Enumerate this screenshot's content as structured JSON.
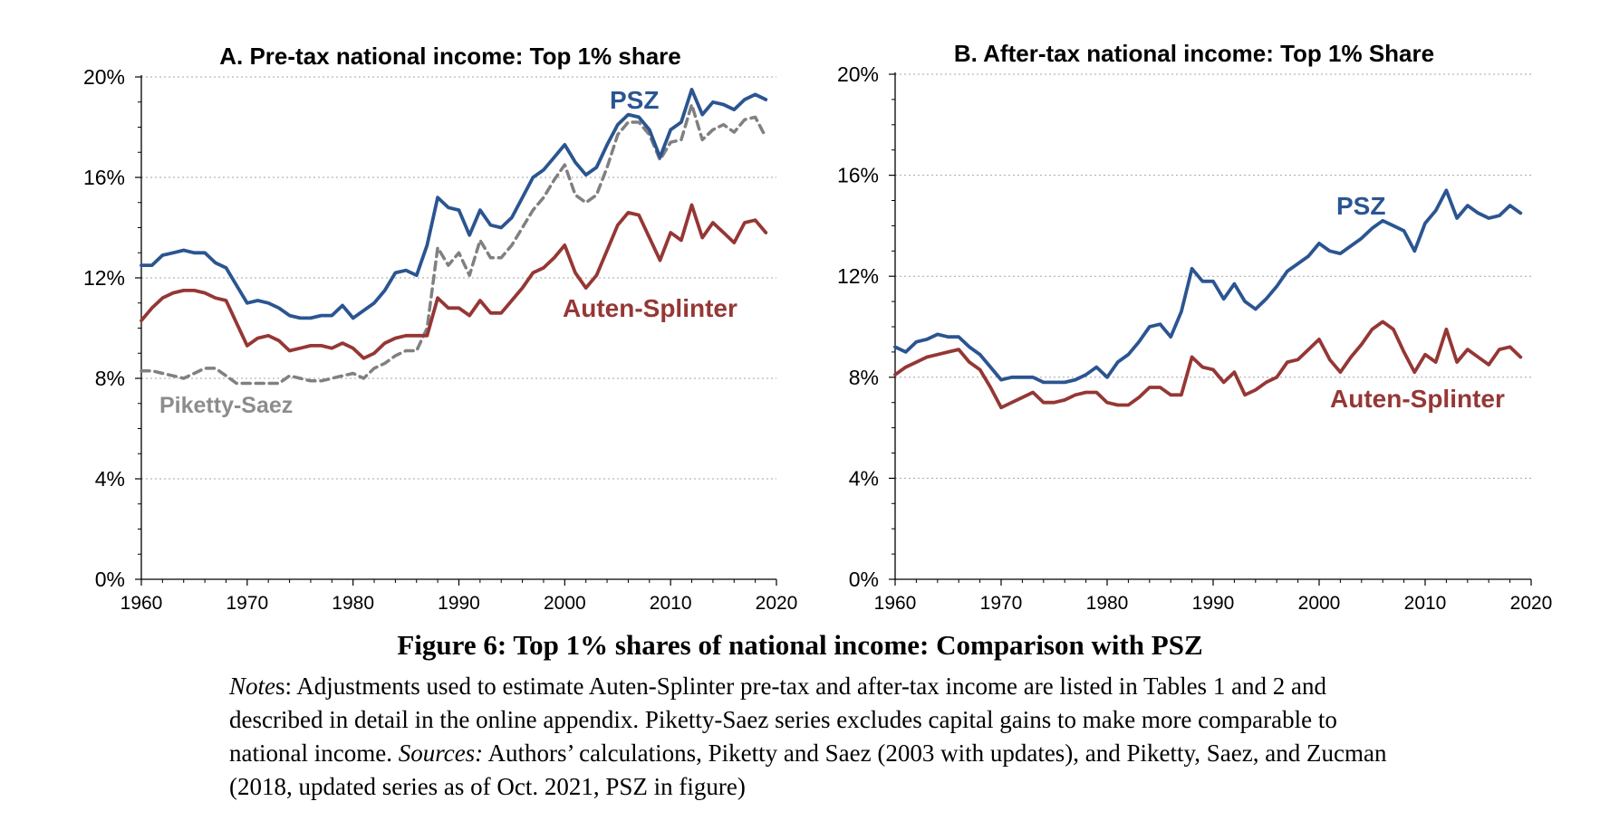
{
  "chart_data": [
    {
      "type": "line",
      "title": "A. Pre-tax national income: Top 1% share",
      "xlim": [
        1960,
        2020
      ],
      "ylim": [
        0,
        20
      ],
      "x_ticks": [
        "1960",
        "1970",
        "1980",
        "1990",
        "2000",
        "2010",
        "2020"
      ],
      "y_ticks": [
        "0%",
        "4%",
        "8%",
        "12%",
        "16%",
        "20%"
      ],
      "grid": "horizontal dotted",
      "series": [
        {
          "name": "PSZ",
          "color": "#2b5591",
          "style": "solid",
          "x": [
            1960,
            1961,
            1962,
            1963,
            1964,
            1965,
            1966,
            1967,
            1968,
            1969,
            1970,
            1971,
            1972,
            1973,
            1974,
            1975,
            1976,
            1977,
            1978,
            1979,
            1980,
            1981,
            1982,
            1983,
            1984,
            1985,
            1986,
            1987,
            1988,
            1989,
            1990,
            1991,
            1992,
            1993,
            1994,
            1995,
            1996,
            1997,
            1998,
            1999,
            2000,
            2001,
            2002,
            2003,
            2004,
            2005,
            2006,
            2007,
            2008,
            2009,
            2010,
            2011,
            2012,
            2013,
            2014,
            2015,
            2016,
            2017,
            2018,
            2019
          ],
          "values": [
            12.5,
            12.5,
            12.9,
            13.0,
            13.1,
            13.0,
            13.0,
            12.6,
            12.4,
            11.7,
            11.0,
            11.1,
            11.0,
            10.8,
            10.5,
            10.4,
            10.4,
            10.5,
            10.5,
            10.9,
            10.4,
            10.7,
            11.0,
            11.5,
            12.2,
            12.3,
            12.1,
            13.3,
            15.2,
            14.8,
            14.7,
            13.7,
            14.7,
            14.1,
            14.0,
            14.4,
            15.2,
            16.0,
            16.3,
            16.8,
            17.3,
            16.6,
            16.1,
            16.4,
            17.3,
            18.1,
            18.5,
            18.4,
            17.9,
            16.8,
            17.9,
            18.2,
            19.5,
            18.5,
            19.0,
            18.9,
            18.7,
            19.1,
            19.3,
            19.1
          ]
        },
        {
          "name": "Auten-Splinter",
          "color": "#953735",
          "style": "solid",
          "x": [
            1960,
            1961,
            1962,
            1963,
            1964,
            1965,
            1966,
            1967,
            1968,
            1969,
            1970,
            1971,
            1972,
            1973,
            1974,
            1975,
            1976,
            1977,
            1978,
            1979,
            1980,
            1981,
            1982,
            1983,
            1984,
            1985,
            1986,
            1987,
            1988,
            1989,
            1990,
            1991,
            1992,
            1993,
            1994,
            1995,
            1996,
            1997,
            1998,
            1999,
            2000,
            2001,
            2002,
            2003,
            2004,
            2005,
            2006,
            2007,
            2008,
            2009,
            2010,
            2011,
            2012,
            2013,
            2014,
            2015,
            2016,
            2017,
            2018,
            2019
          ],
          "values": [
            10.3,
            10.8,
            11.2,
            11.4,
            11.5,
            11.5,
            11.4,
            11.2,
            11.1,
            10.2,
            9.3,
            9.6,
            9.7,
            9.5,
            9.1,
            9.2,
            9.3,
            9.3,
            9.2,
            9.4,
            9.2,
            8.8,
            9.0,
            9.4,
            9.6,
            9.7,
            9.7,
            9.7,
            11.2,
            10.8,
            10.8,
            10.5,
            11.1,
            10.6,
            10.6,
            11.1,
            11.6,
            12.2,
            12.4,
            12.8,
            13.3,
            12.2,
            11.6,
            12.1,
            13.1,
            14.1,
            14.6,
            14.5,
            13.6,
            12.7,
            13.8,
            13.5,
            14.9,
            13.6,
            14.2,
            13.8,
            13.4,
            14.2,
            14.3,
            13.8
          ]
        },
        {
          "name": "Piketty-Saez",
          "color": "#808080",
          "style": "dashed",
          "x": [
            1960,
            1961,
            1962,
            1963,
            1964,
            1965,
            1966,
            1967,
            1968,
            1969,
            1970,
            1971,
            1972,
            1973,
            1974,
            1975,
            1976,
            1977,
            1978,
            1979,
            1980,
            1981,
            1982,
            1983,
            1984,
            1985,
            1986,
            1987,
            1988,
            1989,
            1990,
            1991,
            1992,
            1993,
            1994,
            1995,
            1996,
            1997,
            1998,
            1999,
            2000,
            2001,
            2002,
            2003,
            2004,
            2005,
            2006,
            2007,
            2008,
            2009,
            2010,
            2011,
            2012,
            2013,
            2014,
            2015,
            2016,
            2017,
            2018,
            2019
          ],
          "values": [
            8.3,
            8.3,
            8.2,
            8.1,
            8.0,
            8.2,
            8.4,
            8.4,
            8.1,
            7.8,
            7.8,
            7.8,
            7.8,
            7.8,
            8.1,
            8.0,
            7.9,
            7.9,
            8.0,
            8.1,
            8.2,
            8.0,
            8.4,
            8.6,
            8.9,
            9.1,
            9.1,
            10.0,
            13.2,
            12.5,
            13.0,
            12.1,
            13.5,
            12.8,
            12.8,
            13.3,
            14.0,
            14.7,
            15.2,
            15.9,
            16.5,
            15.3,
            15.0,
            15.3,
            16.4,
            17.7,
            18.2,
            18.2,
            17.7,
            16.7,
            17.4,
            17.5,
            18.9,
            17.5,
            17.9,
            18.1,
            17.8,
            18.3,
            18.4,
            17.6
          ]
        }
      ],
      "annotations": [
        "PSZ",
        "Auten-Splinter",
        "Piketty-Saez"
      ]
    },
    {
      "type": "line",
      "title": "B. After-tax national income: Top 1% Share",
      "xlim": [
        1960,
        2020
      ],
      "ylim": [
        0,
        20
      ],
      "x_ticks": [
        "1960",
        "1970",
        "1980",
        "1990",
        "2000",
        "2010",
        "2020"
      ],
      "y_ticks": [
        "0%",
        "4%",
        "8%",
        "12%",
        "16%",
        "20%"
      ],
      "grid": "horizontal dotted",
      "series": [
        {
          "name": "PSZ",
          "color": "#2b5591",
          "style": "solid",
          "x": [
            1960,
            1961,
            1962,
            1963,
            1964,
            1965,
            1966,
            1967,
            1968,
            1969,
            1970,
            1971,
            1972,
            1973,
            1974,
            1975,
            1976,
            1977,
            1978,
            1979,
            1980,
            1981,
            1982,
            1983,
            1984,
            1985,
            1986,
            1987,
            1988,
            1989,
            1990,
            1991,
            1992,
            1993,
            1994,
            1995,
            1996,
            1997,
            1998,
            1999,
            2000,
            2001,
            2002,
            2003,
            2004,
            2005,
            2006,
            2007,
            2008,
            2009,
            2010,
            2011,
            2012,
            2013,
            2014,
            2015,
            2016,
            2017,
            2018,
            2019
          ],
          "values": [
            9.2,
            9.0,
            9.4,
            9.5,
            9.7,
            9.6,
            9.6,
            9.2,
            8.9,
            8.4,
            7.9,
            8.0,
            8.0,
            8.0,
            7.8,
            7.8,
            7.8,
            7.9,
            8.1,
            8.4,
            8.0,
            8.6,
            8.9,
            9.4,
            10.0,
            10.1,
            9.6,
            10.6,
            12.3,
            11.8,
            11.8,
            11.1,
            11.7,
            11.0,
            10.7,
            11.1,
            11.6,
            12.2,
            12.5,
            12.8,
            13.3,
            13.0,
            12.9,
            13.2,
            13.5,
            13.9,
            14.2,
            14.0,
            13.8,
            13.0,
            14.1,
            14.6,
            15.4,
            14.3,
            14.8,
            14.5,
            14.3,
            14.4,
            14.8,
            14.5
          ]
        },
        {
          "name": "Auten-Splinter",
          "color": "#953735",
          "style": "solid",
          "x": [
            1960,
            1961,
            1962,
            1963,
            1964,
            1965,
            1966,
            1967,
            1968,
            1969,
            1970,
            1971,
            1972,
            1973,
            1974,
            1975,
            1976,
            1977,
            1978,
            1979,
            1980,
            1981,
            1982,
            1983,
            1984,
            1985,
            1986,
            1987,
            1988,
            1989,
            1990,
            1991,
            1992,
            1993,
            1994,
            1995,
            1996,
            1997,
            1998,
            1999,
            2000,
            2001,
            2002,
            2003,
            2004,
            2005,
            2006,
            2007,
            2008,
            2009,
            2010,
            2011,
            2012,
            2013,
            2014,
            2015,
            2016,
            2017,
            2018,
            2019
          ],
          "values": [
            8.1,
            8.4,
            8.6,
            8.8,
            8.9,
            9.0,
            9.1,
            8.6,
            8.3,
            7.6,
            6.8,
            7.0,
            7.2,
            7.4,
            7.0,
            7.0,
            7.1,
            7.3,
            7.4,
            7.4,
            7.0,
            6.9,
            6.9,
            7.2,
            7.6,
            7.6,
            7.3,
            7.3,
            8.8,
            8.4,
            8.3,
            7.8,
            8.2,
            7.3,
            7.5,
            7.8,
            8.0,
            8.6,
            8.7,
            9.1,
            9.5,
            8.7,
            8.2,
            8.8,
            9.3,
            9.9,
            10.2,
            9.9,
            9.0,
            8.2,
            8.9,
            8.6,
            9.9,
            8.6,
            9.1,
            8.8,
            8.5,
            9.1,
            9.2,
            8.8
          ]
        }
      ],
      "annotations": [
        "PSZ",
        "Auten-Splinter"
      ]
    }
  ],
  "caption": {
    "figure_title": "Figure 6: Top 1% shares of national income: Comparison with PSZ",
    "notes_label": "Note",
    "notes_label_suffix": "s",
    "notes_text": ": Adjustments used to estimate Auten-Splinter pre-tax and after-tax income are listed in Tables 1 and 2 and described in detail in the online appendix. Piketty-Saez series excludes capital gains to make more comparable to national income. ",
    "sources_label": "Sources:",
    "sources_text": " Authors’ calculations, Piketty and Saez (2003 with updates), and Piketty, Saez, and Zucman (2018, updated series as of Oct. 2021, PSZ in figure)"
  }
}
